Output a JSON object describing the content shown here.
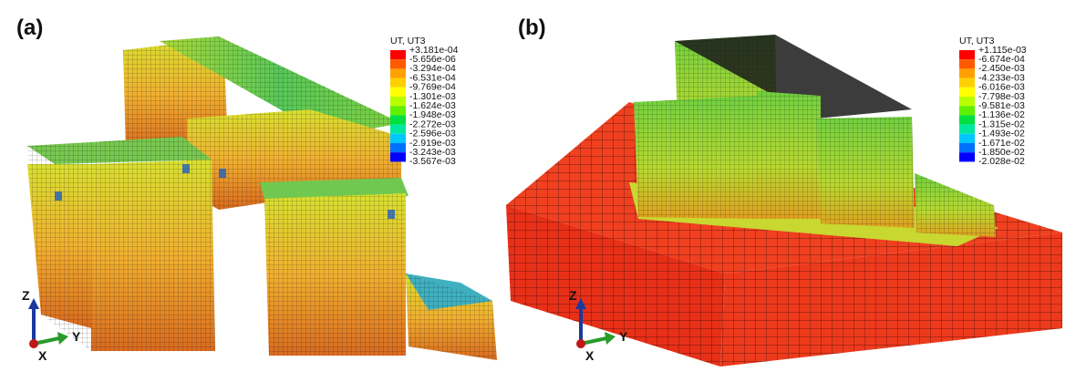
{
  "panels": [
    {
      "label": "(a)",
      "legend_title": "UT, UT3",
      "legend_labels": [
        "+3.181e-04",
        "-5.656e-06",
        "-3.294e-04",
        "-6.531e-04",
        "-9.769e-04",
        "-1.301e-03",
        "-1.624e-03",
        "-1.948e-03",
        "-2.272e-03",
        "-2.596e-03",
        "-2.919e-03",
        "-3.243e-03",
        "-3.567e-03"
      ],
      "axes": {
        "z": "Z",
        "y": "Y",
        "x": "X"
      }
    },
    {
      "label": "(b)",
      "legend_title": "UT, UT3",
      "legend_labels": [
        "+1.115e-03",
        "-6.674e-04",
        "-2.450e-03",
        "-4.233e-03",
        "-6.016e-03",
        "-7.798e-03",
        "-9.581e-03",
        "-1.136e-02",
        "-1.315e-02",
        "-1.493e-02",
        "-1.671e-02",
        "-1.850e-02",
        "-2.028e-02"
      ],
      "axes": {
        "z": "Z",
        "y": "Y",
        "x": "X"
      }
    }
  ]
}
